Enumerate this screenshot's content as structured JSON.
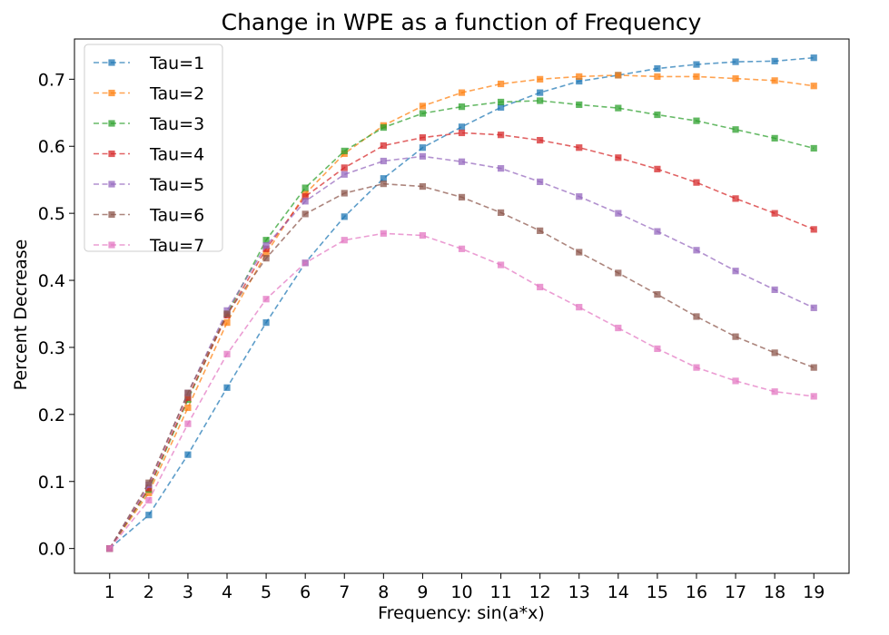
{
  "chart_data": {
    "type": "line",
    "title": "Change in WPE as a function of Frequency",
    "xlabel": "Frequency: sin(a*x)",
    "ylabel": "Percent Decrease",
    "x": [
      1,
      2,
      3,
      4,
      5,
      6,
      7,
      8,
      9,
      10,
      11,
      12,
      13,
      14,
      15,
      16,
      17,
      18,
      19
    ],
    "xlim": [
      0.1,
      19.9
    ],
    "ylim": [
      -0.037,
      0.76
    ],
    "xticks": [
      1,
      2,
      3,
      4,
      5,
      6,
      7,
      8,
      9,
      10,
      11,
      12,
      13,
      14,
      15,
      16,
      17,
      18,
      19
    ],
    "yticks": [
      0.0,
      0.1,
      0.2,
      0.3,
      0.4,
      0.5,
      0.6,
      0.7
    ],
    "ytick_labels": [
      "0.0",
      "0.1",
      "0.2",
      "0.3",
      "0.4",
      "0.5",
      "0.6",
      "0.7"
    ],
    "grid": false,
    "legend_position": "top-left",
    "line_style": "dashed",
    "marker": "square",
    "series": [
      {
        "name": "Tau=1",
        "color": "#1f77b4",
        "values": [
          0.0,
          0.05,
          0.14,
          0.24,
          0.337,
          0.426,
          0.495,
          0.552,
          0.598,
          0.629,
          0.658,
          0.68,
          0.697,
          0.706,
          0.716,
          0.722,
          0.726,
          0.727,
          0.732
        ]
      },
      {
        "name": "Tau=2",
        "color": "#ff7f0e",
        "values": [
          0.0,
          0.083,
          0.21,
          0.337,
          0.44,
          0.529,
          0.589,
          0.631,
          0.66,
          0.68,
          0.693,
          0.7,
          0.704,
          0.706,
          0.704,
          0.704,
          0.701,
          0.698,
          0.69
        ]
      },
      {
        "name": "Tau=3",
        "color": "#2ca02c",
        "values": [
          0.0,
          0.088,
          0.222,
          0.35,
          0.46,
          0.538,
          0.593,
          0.628,
          0.649,
          0.659,
          0.666,
          0.668,
          0.662,
          0.657,
          0.647,
          0.638,
          0.625,
          0.612,
          0.597
        ]
      },
      {
        "name": "Tau=4",
        "color": "#d62728",
        "values": [
          0.0,
          0.09,
          0.225,
          0.348,
          0.447,
          0.525,
          0.568,
          0.601,
          0.613,
          0.62,
          0.617,
          0.609,
          0.598,
          0.583,
          0.566,
          0.546,
          0.522,
          0.5,
          0.476
        ]
      },
      {
        "name": "Tau=5",
        "color": "#9467bd",
        "values": [
          0.0,
          0.095,
          0.232,
          0.355,
          0.452,
          0.518,
          0.558,
          0.578,
          0.585,
          0.577,
          0.567,
          0.547,
          0.525,
          0.5,
          0.473,
          0.445,
          0.414,
          0.386,
          0.359
        ]
      },
      {
        "name": "Tau=6",
        "color": "#8c564b",
        "values": [
          0.0,
          0.098,
          0.232,
          0.35,
          0.433,
          0.499,
          0.53,
          0.544,
          0.54,
          0.524,
          0.501,
          0.474,
          0.442,
          0.411,
          0.379,
          0.346,
          0.316,
          0.292,
          0.27
        ]
      },
      {
        "name": "Tau=7",
        "color": "#e377c2",
        "values": [
          0.0,
          0.072,
          0.186,
          0.29,
          0.372,
          0.426,
          0.46,
          0.47,
          0.467,
          0.447,
          0.423,
          0.39,
          0.36,
          0.329,
          0.298,
          0.27,
          0.25,
          0.234,
          0.227
        ]
      }
    ]
  }
}
